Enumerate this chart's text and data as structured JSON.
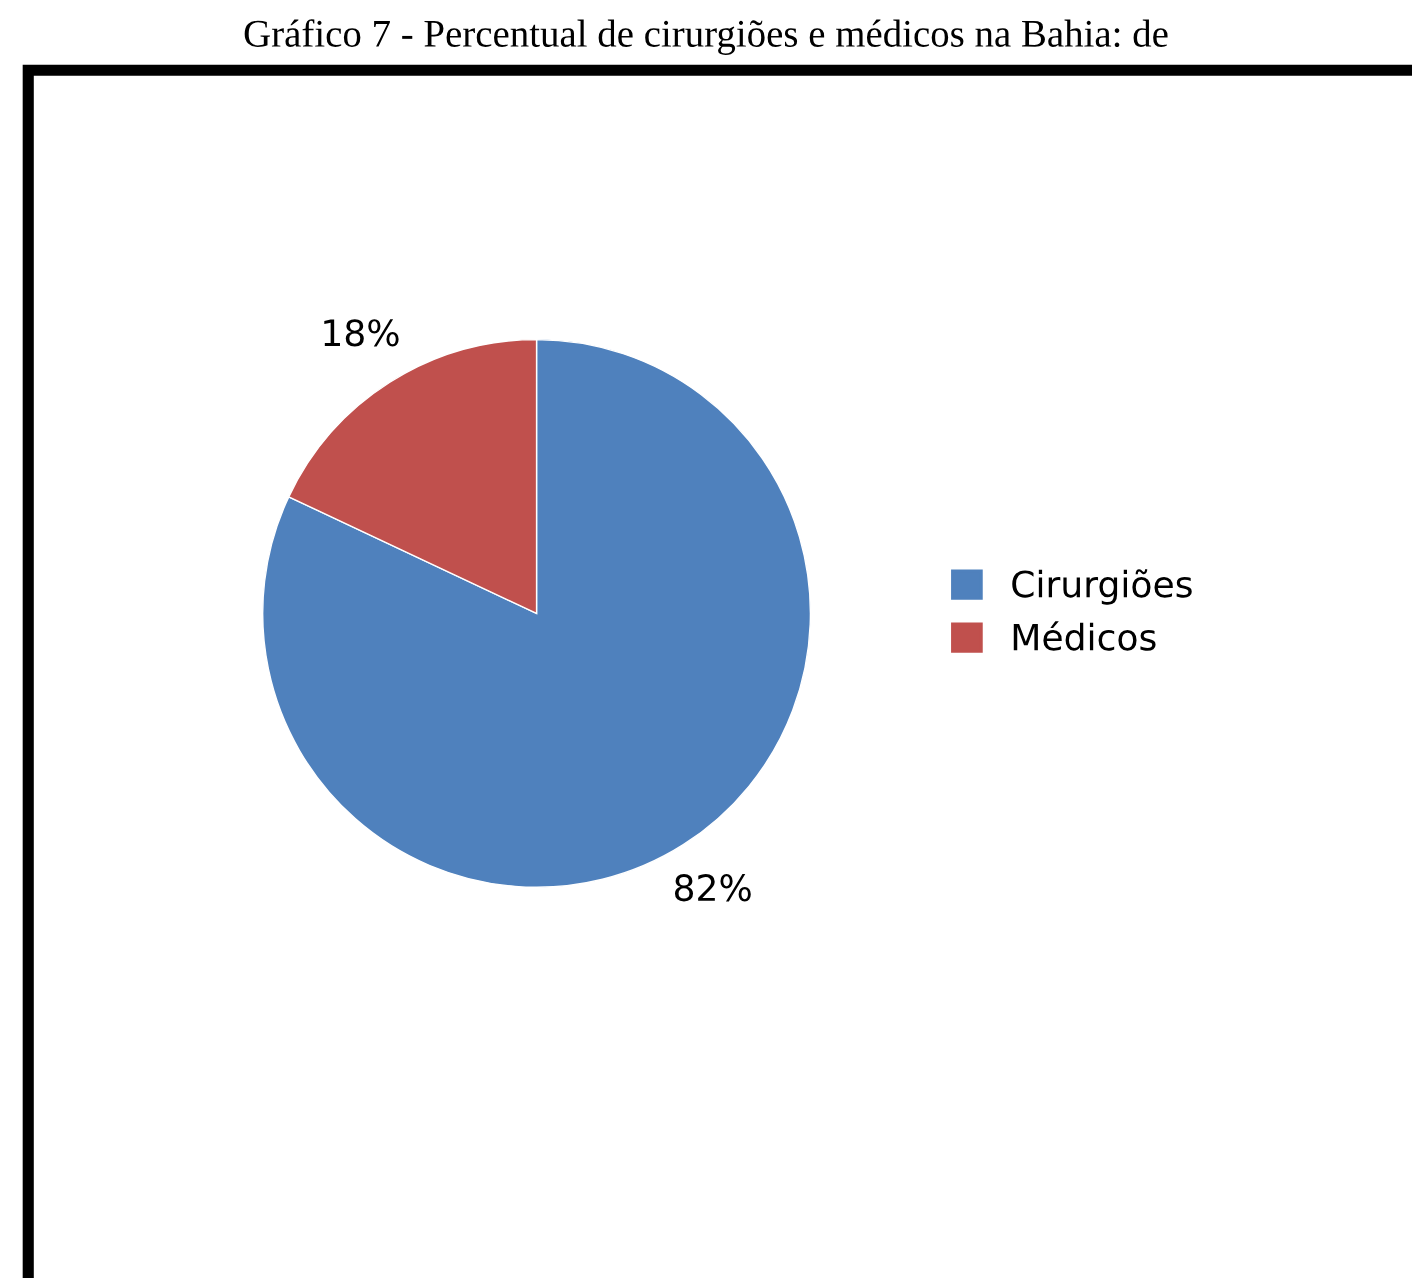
{
  "chart_data": {
    "type": "pie",
    "title": "Gráfico 7 - Percentual de cirurgiões e médicos na Bahia: de",
    "categories": [
      "Cirurgiões",
      "Médicos"
    ],
    "values": [
      82,
      18
    ],
    "colors": [
      "#4f81bd",
      "#c0504d"
    ],
    "value_labels": [
      "82%",
      "18%"
    ],
    "legend": "right"
  }
}
